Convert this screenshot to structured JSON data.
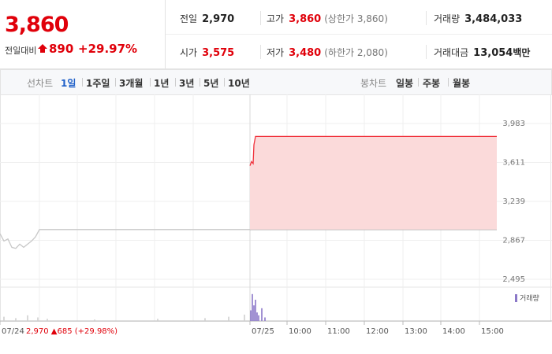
{
  "quote": {
    "price": "3,860",
    "change_label": "전일대비",
    "change": "890",
    "change_pct": "+29.97%"
  },
  "summary": [
    [
      {
        "label": "전일",
        "value": "2,970"
      },
      {
        "label": "고가",
        "value": "3,860",
        "note": "(상한가 3,860)",
        "color": "#e0000a"
      },
      {
        "label": "거래량",
        "value": "3,484,033"
      }
    ],
    [
      {
        "label": "시가",
        "value": "3,575",
        "color": "#e0000a"
      },
      {
        "label": "저가",
        "value": "3,480",
        "note": "(하한가 2,080)",
        "color": "#e0000a"
      },
      {
        "label": "거래대금",
        "value": "13,054",
        "unit": "백만"
      }
    ]
  ],
  "tabs": {
    "line_label": "선차트",
    "line": [
      "1일",
      "1주일",
      "3개월",
      "1년",
      "3년",
      "5년",
      "10년"
    ],
    "selected": 0,
    "candle_label": "봉차트",
    "candle": [
      "일봉",
      "주봉",
      "월봉"
    ]
  },
  "chart_data": {
    "type": "line",
    "grid": true,
    "xlim": [
      0,
      630
    ],
    "xticks": [
      {
        "value": 0,
        "label": "07/24"
      },
      {
        "value": 317,
        "label": "07/25"
      },
      {
        "value": 364,
        "label": "10:00"
      },
      {
        "value": 413,
        "label": "11:00"
      },
      {
        "value": 462,
        "label": "12:00"
      },
      {
        "value": 511,
        "label": "13:00"
      },
      {
        "value": 559,
        "label": "14:00"
      },
      {
        "value": 608,
        "label": "15:00"
      }
    ],
    "xgrid": [
      50,
      98,
      147,
      196,
      245
    ],
    "ylim": [
      2495,
      3983
    ],
    "yticks": [
      {
        "value": 2495,
        "label": "2,495"
      },
      {
        "value": 2867,
        "label": "2,867"
      },
      {
        "value": 3239,
        "label": "3,239"
      },
      {
        "value": 3611,
        "label": "3,611"
      },
      {
        "value": 3983,
        "label": "3,983"
      }
    ],
    "series": [
      {
        "color": "#c8c8c8",
        "x": [
          0,
          5,
          10,
          15,
          20,
          25,
          30,
          35,
          40,
          45,
          50,
          317
        ],
        "values": [
          2930,
          2860,
          2880,
          2800,
          2790,
          2830,
          2800,
          2830,
          2860,
          2900,
          2970,
          2970
        ]
      },
      {
        "color": "#b0b0b0",
        "x": [
          317,
          630
        ],
        "values": [
          2970,
          2970
        ]
      },
      {
        "color": "#f0323c",
        "fill": "#fbdada",
        "base": 2970,
        "x": [
          317,
          319,
          321,
          322,
          324,
          327,
          630
        ],
        "values": [
          3580,
          3620,
          3600,
          3780,
          3860,
          3860,
          3860
        ]
      }
    ],
    "volume": {
      "ylim": [
        0,
        40
      ],
      "series": [
        {
          "color": "#d0d0d0",
          "x": [
            5,
            20,
            35,
            48,
            60,
            120,
            200,
            260,
            290,
            310
          ],
          "values": [
            6,
            4,
            8,
            5,
            3,
            2,
            3,
            4,
            6,
            9
          ]
        },
        {
          "name": "거래량",
          "color": "#8b78c8",
          "x": [
            318,
            320,
            322,
            324,
            326,
            328,
            332,
            336
          ],
          "values": [
            15,
            38,
            22,
            30,
            12,
            8,
            18,
            5
          ]
        }
      ]
    },
    "footer": "2,970 ▲685 (+29.98%)"
  }
}
